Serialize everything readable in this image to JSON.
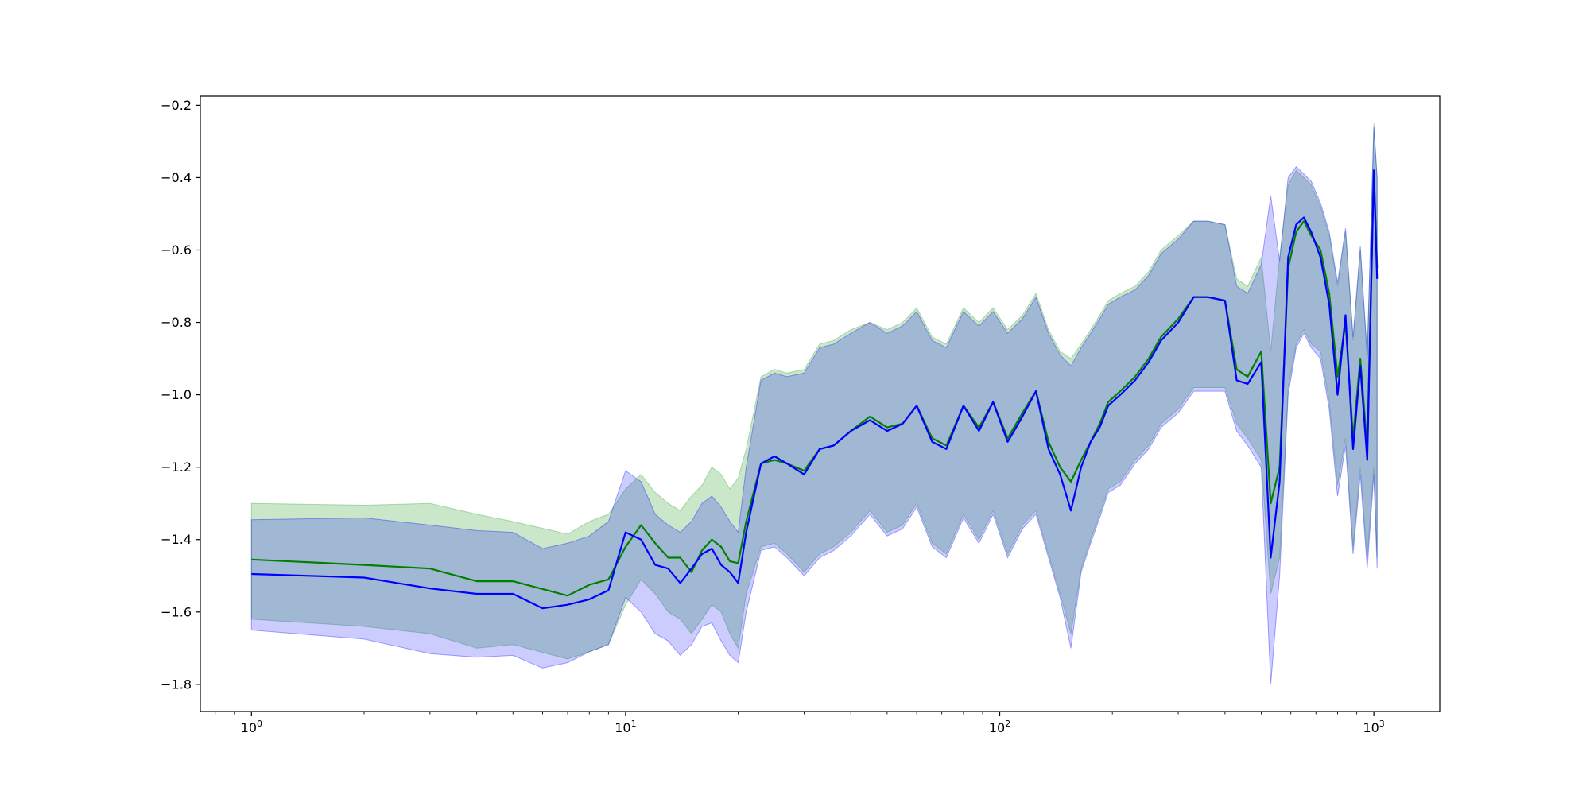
{
  "chart_data": {
    "type": "line",
    "title": "",
    "xlabel": "",
    "ylabel": "",
    "xscale": "log",
    "xlim": [
      0.73,
      1500
    ],
    "ylim": [
      -1.875,
      -0.175
    ],
    "grid": false,
    "legend": "none",
    "x_ticks": [
      {
        "value": 1,
        "base": "10",
        "exp": "0"
      },
      {
        "value": 10,
        "base": "10",
        "exp": "1"
      },
      {
        "value": 100,
        "base": "10",
        "exp": "2"
      },
      {
        "value": 1000,
        "base": "10",
        "exp": "3"
      }
    ],
    "y_ticks": [
      {
        "value": -1.8,
        "label": "−1.8"
      },
      {
        "value": -1.6,
        "label": "−1.6"
      },
      {
        "value": -1.4,
        "label": "−1.4"
      },
      {
        "value": -1.2,
        "label": "−1.2"
      },
      {
        "value": -1.0,
        "label": "−1.0"
      },
      {
        "value": -0.8,
        "label": "−0.8"
      },
      {
        "value": -0.6,
        "label": "−0.6"
      },
      {
        "value": -0.4,
        "label": "−0.4"
      },
      {
        "value": -0.2,
        "label": "−0.2"
      }
    ],
    "series": [
      {
        "color": "#008000",
        "band_color": "#2ca02c",
        "band_opacity": 0.25,
        "x": [
          1,
          2,
          3,
          4,
          5,
          7,
          8,
          9,
          10,
          11,
          12,
          13,
          14,
          15,
          16,
          17,
          18,
          19,
          20,
          21,
          23,
          25,
          27,
          30,
          33,
          36,
          40,
          45,
          50,
          55,
          60,
          66,
          72,
          80,
          88,
          96,
          105,
          115,
          125,
          135,
          145,
          155,
          165,
          175,
          185,
          195,
          210,
          230,
          250,
          270,
          300,
          330,
          360,
          400,
          430,
          460,
          500,
          530,
          560,
          590,
          620,
          650,
          680,
          720,
          760,
          800,
          840,
          880,
          920,
          960,
          1000,
          1020
        ],
        "y": [
          -1.455,
          -1.47,
          -1.48,
          -1.515,
          -1.515,
          -1.555,
          -1.525,
          -1.51,
          -1.42,
          -1.36,
          -1.41,
          -1.45,
          -1.45,
          -1.49,
          -1.43,
          -1.4,
          -1.42,
          -1.46,
          -1.465,
          -1.35,
          -1.19,
          -1.18,
          -1.19,
          -1.21,
          -1.15,
          -1.14,
          -1.1,
          -1.06,
          -1.09,
          -1.08,
          -1.03,
          -1.12,
          -1.14,
          -1.03,
          -1.09,
          -1.02,
          -1.12,
          -1.05,
          -0.99,
          -1.13,
          -1.2,
          -1.24,
          -1.18,
          -1.13,
          -1.08,
          -1.02,
          -0.99,
          -0.95,
          -0.9,
          -0.84,
          -0.79,
          -0.73,
          -0.73,
          -0.74,
          -0.93,
          -0.95,
          -0.88,
          -1.3,
          -1.2,
          -0.65,
          -0.55,
          -0.52,
          -0.56,
          -0.6,
          -0.72,
          -0.95,
          -0.8,
          -1.12,
          -0.9,
          -1.15,
          -0.38,
          -0.65
        ],
        "lower": [
          -1.62,
          -1.64,
          -1.66,
          -1.7,
          -1.69,
          -1.73,
          -1.71,
          -1.69,
          -1.58,
          -1.51,
          -1.55,
          -1.6,
          -1.62,
          -1.66,
          -1.62,
          -1.58,
          -1.6,
          -1.66,
          -1.7,
          -1.55,
          -1.42,
          -1.41,
          -1.44,
          -1.49,
          -1.44,
          -1.42,
          -1.38,
          -1.32,
          -1.38,
          -1.36,
          -1.3,
          -1.41,
          -1.44,
          -1.33,
          -1.4,
          -1.32,
          -1.44,
          -1.36,
          -1.32,
          -1.44,
          -1.55,
          -1.66,
          -1.48,
          -1.4,
          -1.33,
          -1.26,
          -1.24,
          -1.18,
          -1.14,
          -1.08,
          -1.04,
          -0.98,
          -0.98,
          -0.98,
          -1.08,
          -1.12,
          -1.18,
          -1.55,
          -1.45,
          -0.98,
          -0.86,
          -0.82,
          -0.86,
          -0.88,
          -1.02,
          -1.25,
          -1.12,
          -1.42,
          -1.2,
          -1.45,
          -1.2,
          -1.45
        ],
        "upper": [
          -1.3,
          -1.305,
          -1.3,
          -1.33,
          -1.35,
          -1.385,
          -1.35,
          -1.33,
          -1.26,
          -1.22,
          -1.27,
          -1.3,
          -1.32,
          -1.28,
          -1.25,
          -1.2,
          -1.22,
          -1.26,
          -1.23,
          -1.15,
          -0.95,
          -0.93,
          -0.94,
          -0.93,
          -0.86,
          -0.85,
          -0.82,
          -0.8,
          -0.82,
          -0.8,
          -0.76,
          -0.84,
          -0.86,
          -0.76,
          -0.8,
          -0.76,
          -0.82,
          -0.78,
          -0.72,
          -0.82,
          -0.88,
          -0.9,
          -0.86,
          -0.82,
          -0.78,
          -0.74,
          -0.72,
          -0.7,
          -0.66,
          -0.6,
          -0.56,
          -0.52,
          -0.52,
          -0.53,
          -0.68,
          -0.7,
          -0.62,
          -0.88,
          -0.62,
          -0.42,
          -0.38,
          -0.4,
          -0.42,
          -0.48,
          -0.56,
          -0.7,
          -0.55,
          -0.85,
          -0.6,
          -0.9,
          -0.25,
          -0.4
        ]
      },
      {
        "color": "#0000ff",
        "band_color": "#0000ff",
        "band_opacity": 0.2,
        "x": [
          1,
          2,
          3,
          4,
          5,
          6,
          7,
          8,
          9,
          10,
          11,
          12,
          13,
          14,
          15,
          16,
          17,
          18,
          19,
          20,
          21,
          23,
          25,
          27,
          30,
          33,
          36,
          40,
          45,
          50,
          55,
          60,
          66,
          72,
          80,
          88,
          96,
          105,
          115,
          125,
          135,
          145,
          155,
          165,
          175,
          185,
          195,
          210,
          230,
          250,
          270,
          300,
          330,
          360,
          400,
          430,
          460,
          500,
          530,
          560,
          590,
          620,
          650,
          680,
          720,
          760,
          800,
          840,
          880,
          920,
          960,
          1000,
          1020
        ],
        "y": [
          -1.495,
          -1.505,
          -1.535,
          -1.55,
          -1.55,
          -1.59,
          -1.58,
          -1.565,
          -1.54,
          -1.38,
          -1.4,
          -1.47,
          -1.48,
          -1.52,
          -1.48,
          -1.44,
          -1.425,
          -1.47,
          -1.49,
          -1.52,
          -1.38,
          -1.19,
          -1.17,
          -1.19,
          -1.22,
          -1.15,
          -1.14,
          -1.1,
          -1.07,
          -1.1,
          -1.08,
          -1.03,
          -1.13,
          -1.15,
          -1.03,
          -1.1,
          -1.02,
          -1.13,
          -1.06,
          -0.99,
          -1.15,
          -1.22,
          -1.32,
          -1.2,
          -1.13,
          -1.09,
          -1.03,
          -1.0,
          -0.96,
          -0.91,
          -0.85,
          -0.8,
          -0.73,
          -0.73,
          -0.74,
          -0.96,
          -0.97,
          -0.91,
          -1.45,
          -1.24,
          -0.62,
          -0.53,
          -0.51,
          -0.55,
          -0.62,
          -0.75,
          -1.0,
          -0.78,
          -1.15,
          -0.92,
          -1.18,
          -0.38,
          -0.68
        ],
        "lower": [
          -1.65,
          -1.675,
          -1.715,
          -1.725,
          -1.72,
          -1.755,
          -1.74,
          -1.71,
          -1.69,
          -1.56,
          -1.6,
          -1.66,
          -1.68,
          -1.72,
          -1.69,
          -1.64,
          -1.63,
          -1.68,
          -1.72,
          -1.74,
          -1.6,
          -1.43,
          -1.42,
          -1.45,
          -1.5,
          -1.45,
          -1.43,
          -1.39,
          -1.33,
          -1.39,
          -1.37,
          -1.31,
          -1.42,
          -1.45,
          -1.34,
          -1.41,
          -1.33,
          -1.45,
          -1.37,
          -1.33,
          -1.45,
          -1.56,
          -1.7,
          -1.49,
          -1.41,
          -1.34,
          -1.27,
          -1.25,
          -1.19,
          -1.15,
          -1.09,
          -1.05,
          -0.99,
          -0.99,
          -0.99,
          -1.1,
          -1.14,
          -1.2,
          -1.8,
          -1.5,
          -1.0,
          -0.87,
          -0.83,
          -0.87,
          -0.9,
          -1.04,
          -1.28,
          -1.14,
          -1.44,
          -1.22,
          -1.48,
          -1.22,
          -1.48
        ],
        "upper": [
          -1.345,
          -1.34,
          -1.36,
          -1.375,
          -1.38,
          -1.425,
          -1.41,
          -1.39,
          -1.35,
          -1.21,
          -1.24,
          -1.33,
          -1.36,
          -1.38,
          -1.35,
          -1.3,
          -1.28,
          -1.31,
          -1.35,
          -1.38,
          -1.2,
          -0.96,
          -0.94,
          -0.95,
          -0.94,
          -0.87,
          -0.86,
          -0.83,
          -0.8,
          -0.83,
          -0.81,
          -0.77,
          -0.85,
          -0.87,
          -0.77,
          -0.81,
          -0.77,
          -0.83,
          -0.79,
          -0.73,
          -0.83,
          -0.89,
          -0.92,
          -0.87,
          -0.83,
          -0.79,
          -0.75,
          -0.73,
          -0.71,
          -0.67,
          -0.61,
          -0.57,
          -0.52,
          -0.52,
          -0.53,
          -0.7,
          -0.72,
          -0.64,
          -0.45,
          -0.63,
          -0.4,
          -0.37,
          -0.39,
          -0.41,
          -0.47,
          -0.55,
          -0.69,
          -0.54,
          -0.84,
          -0.59,
          -0.89,
          -0.26,
          -0.4
        ]
      }
    ]
  }
}
